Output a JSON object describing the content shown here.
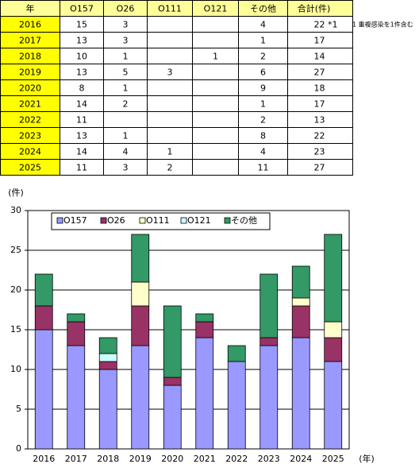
{
  "table": {
    "header": [
      "年",
      "O157",
      "O26",
      "O111",
      "O121",
      "その他",
      "合計(件)"
    ],
    "rows": [
      [
        "2016",
        15,
        3,
        null,
        null,
        4,
        "22 *1"
      ],
      [
        "2017",
        13,
        3,
        null,
        null,
        1,
        17
      ],
      [
        "2018",
        10,
        1,
        null,
        1,
        2,
        14
      ],
      [
        "2019",
        13,
        5,
        3,
        null,
        6,
        27
      ],
      [
        "2020",
        8,
        1,
        null,
        null,
        9,
        18
      ],
      [
        "2021",
        14,
        2,
        null,
        null,
        1,
        17
      ],
      [
        "2022",
        11,
        null,
        null,
        null,
        2,
        13
      ],
      [
        "2023",
        13,
        1,
        null,
        null,
        8,
        22
      ],
      [
        "2024",
        14,
        4,
        1,
        null,
        4,
        23
      ],
      [
        "2025",
        11,
        3,
        2,
        null,
        11,
        27
      ]
    ],
    "note": "*1 重複感染を1件含む"
  },
  "chart_data": {
    "type": "stacked_bar",
    "y_label": "(件)",
    "x_label": "(年)",
    "categories": [
      "2016",
      "2017",
      "2018",
      "2019",
      "2020",
      "2021",
      "2022",
      "2023",
      "2024",
      "2025"
    ],
    "series": [
      {
        "name": "O157",
        "color": "#9999ff",
        "values": [
          15,
          13,
          10,
          13,
          8,
          14,
          11,
          13,
          14,
          11
        ]
      },
      {
        "name": "O26",
        "color": "#993366",
        "values": [
          3,
          3,
          1,
          5,
          1,
          2,
          null,
          1,
          4,
          3
        ]
      },
      {
        "name": "O111",
        "color": "#ffffcc",
        "values": [
          null,
          null,
          null,
          3,
          null,
          null,
          null,
          null,
          1,
          2
        ]
      },
      {
        "name": "O121",
        "color": "#ccffff",
        "values": [
          null,
          null,
          1,
          null,
          null,
          null,
          null,
          null,
          null,
          null
        ]
      },
      {
        "name": "その他",
        "color": "#339966",
        "values": [
          4,
          1,
          2,
          6,
          9,
          1,
          2,
          8,
          4,
          11
        ]
      }
    ],
    "ylim": [
      0,
      30
    ],
    "yticks": [
      0,
      5,
      10,
      15,
      20,
      25,
      30
    ],
    "grid": true
  }
}
